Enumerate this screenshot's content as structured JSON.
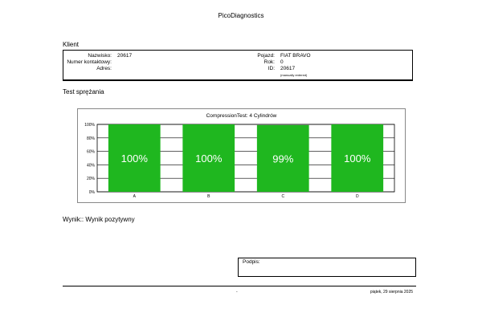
{
  "app_title": "PicoDiagnostics",
  "klient": {
    "title": "Klient",
    "fields_left": [
      {
        "label": "Nazwisko:",
        "value": "20617"
      },
      {
        "label": "Numer kontaktowy:",
        "value": ""
      },
      {
        "label": "Adres:",
        "value": ""
      }
    ],
    "fields_right": [
      {
        "label": "Pojazd:",
        "value": "FIAT BRAVO"
      },
      {
        "label": "Rok:",
        "value": "0"
      },
      {
        "label": "ID:",
        "value": "20617"
      }
    ],
    "id_note": "(manually entered)"
  },
  "test": {
    "title": "Test sprężania"
  },
  "chart_data": {
    "type": "bar",
    "title": "CompressionTest: 4 Cylindrów",
    "categories": [
      "A",
      "B",
      "C",
      "D"
    ],
    "values": [
      100,
      100,
      99,
      100
    ],
    "value_labels": [
      "100%",
      "100%",
      "99%",
      "100%"
    ],
    "y_ticks": [
      "0%",
      "20%",
      "40%",
      "60%",
      "80%",
      "100%"
    ],
    "ylim": [
      0,
      100
    ],
    "grid": true,
    "bar_color": "#1fb71f",
    "xlabel": "",
    "ylabel": ""
  },
  "wynik": "Wynik:: Wynik pozytywny",
  "podpis_label": "Podpis:",
  "footer": {
    "dash": "-",
    "date": "piątek, 29 sierpnia 2025"
  }
}
